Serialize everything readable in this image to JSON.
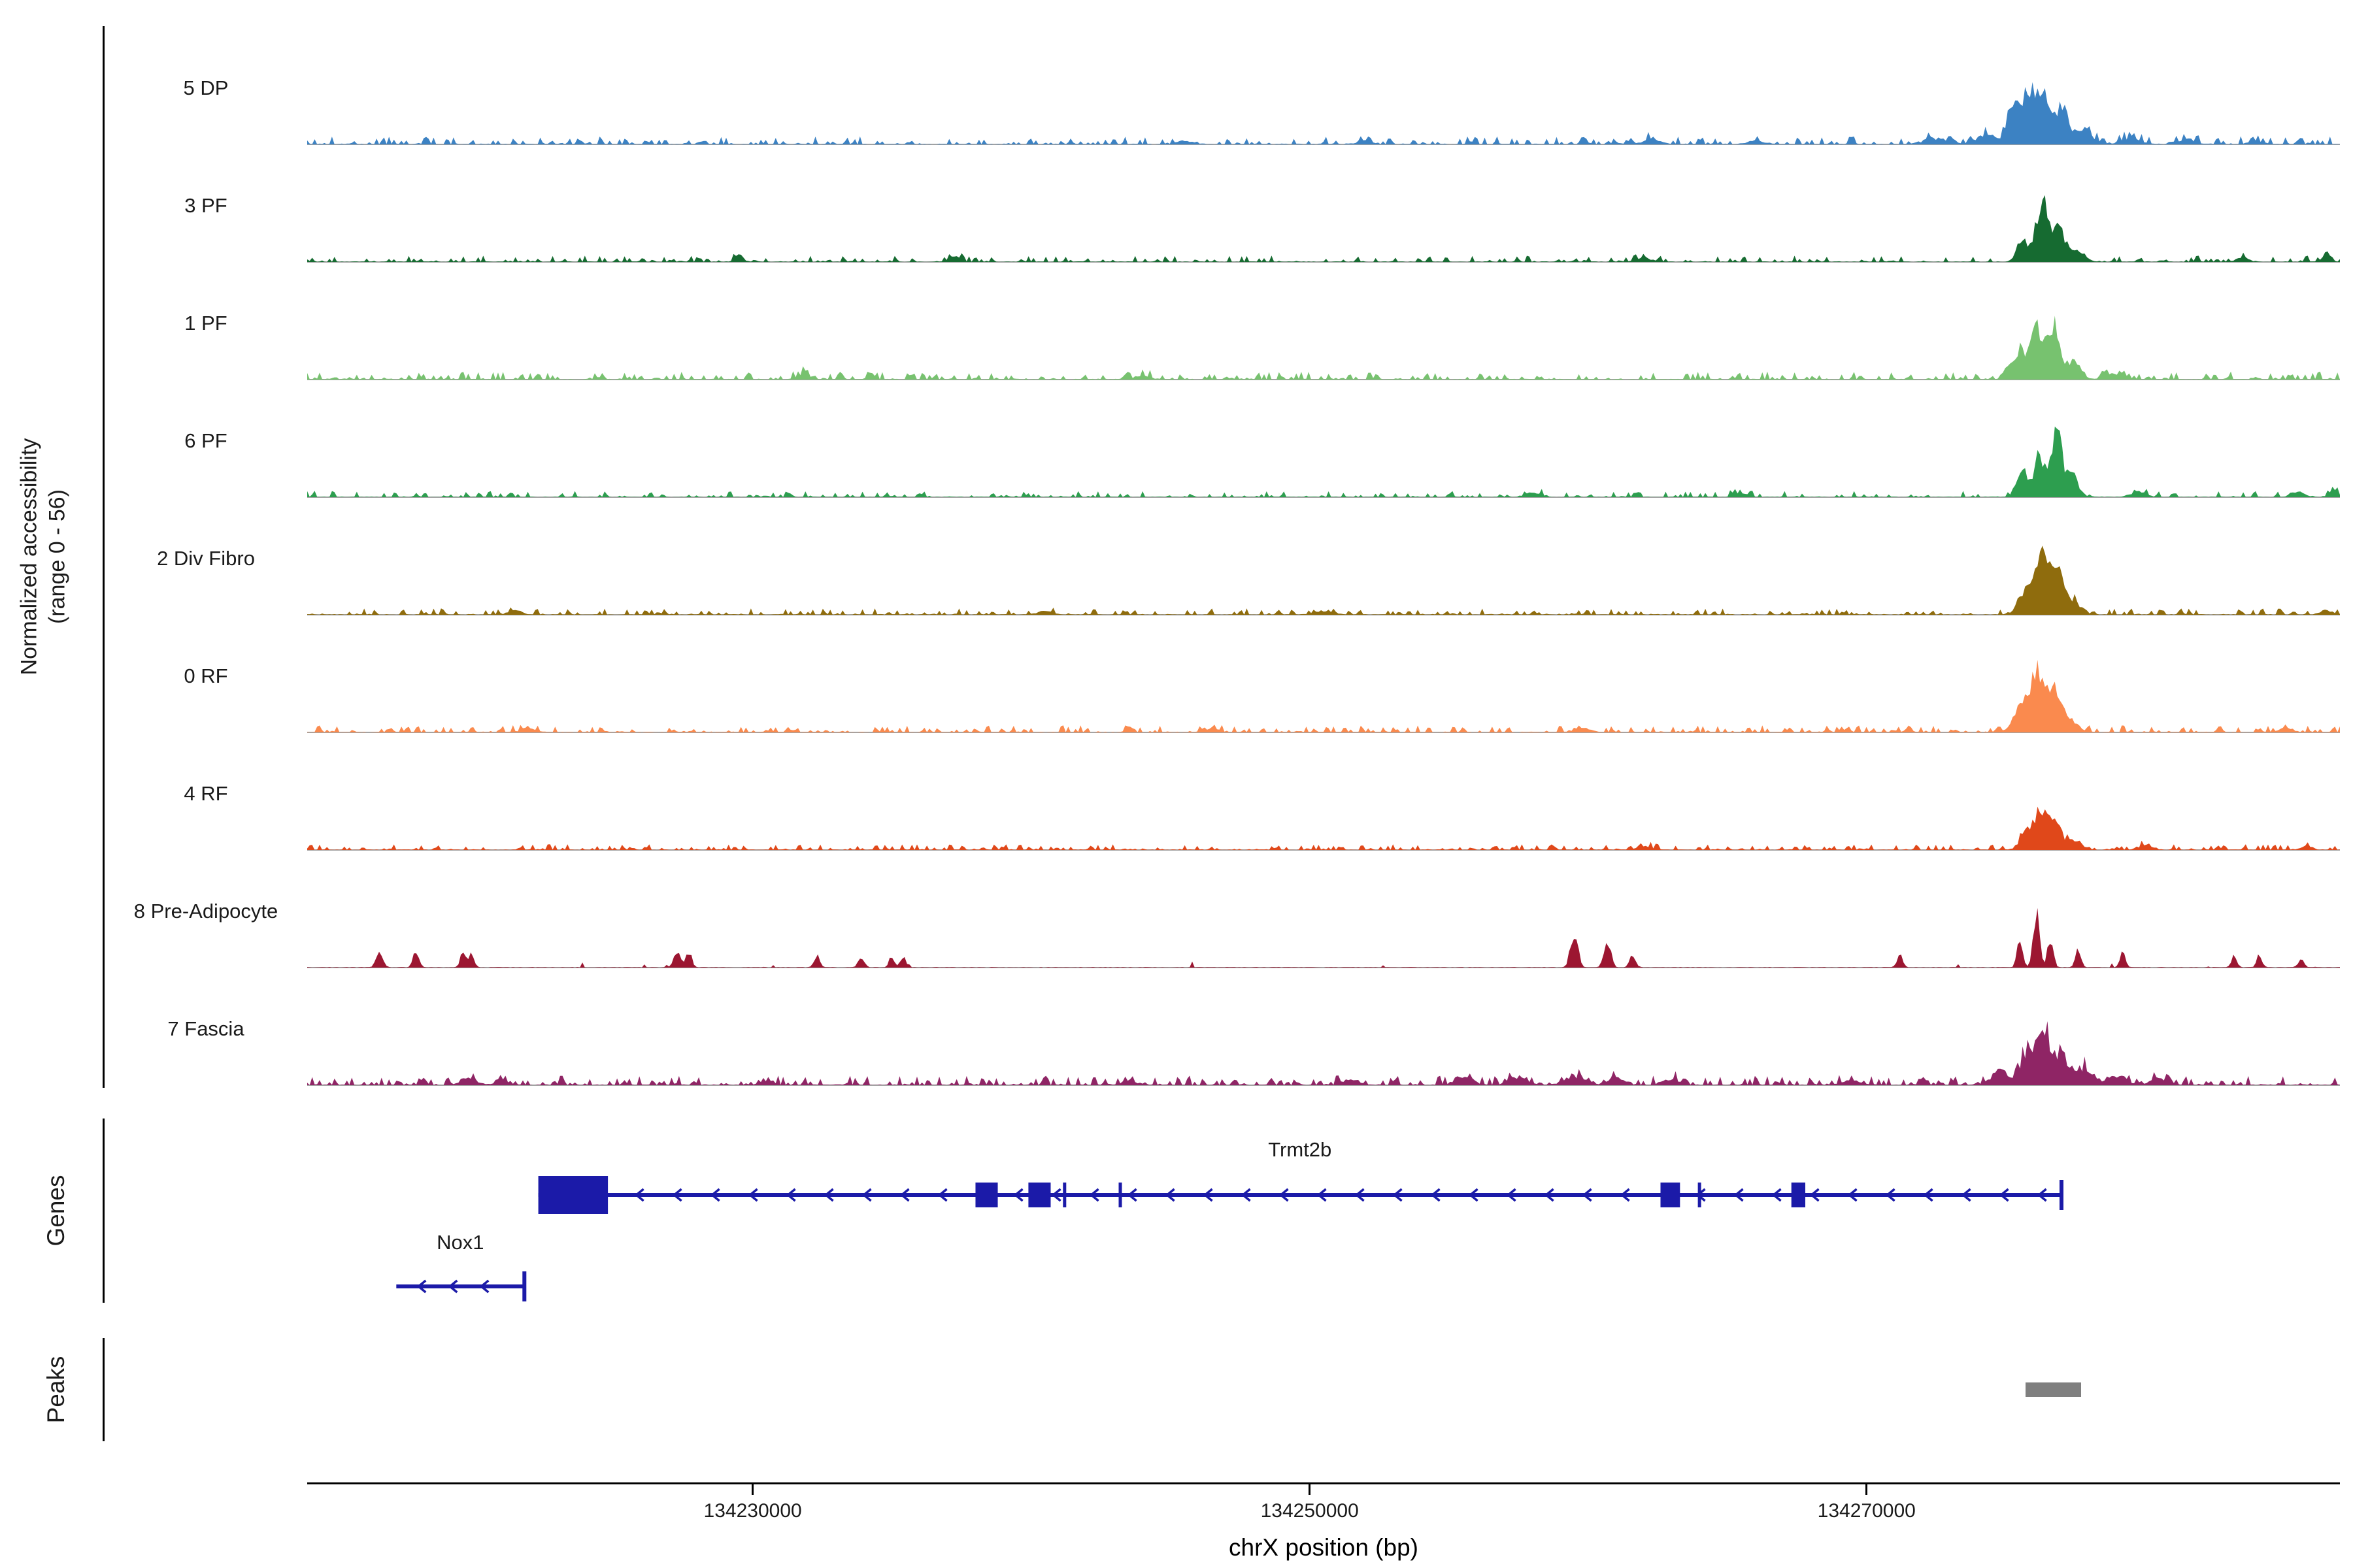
{
  "y_axis": {
    "label_line1": "Normalized accessibility",
    "label_line2": "(range 0 - 56)"
  },
  "sections": {
    "genes_label": "Genes",
    "peaks_label": "Peaks"
  },
  "chart_data": {
    "type": "area",
    "ylim": [
      0,
      56
    ],
    "x_domain_bp": [
      134214000,
      134287000
    ],
    "xaxis": {
      "title": "chrX position (bp)",
      "ticks": [
        {
          "bp": 134230000,
          "label": "134230000"
        },
        {
          "bp": 134250000,
          "label": "134250000"
        },
        {
          "bp": 134270000,
          "label": "134270000"
        }
      ]
    },
    "tracks": [
      {
        "label": "5 DP",
        "color": "#3c82c3",
        "noise": {
          "density": 0.55,
          "amp": 2.5
        },
        "peaks": [
          [
            134245500,
            3,
            300
          ],
          [
            134252000,
            2.5,
            250
          ],
          [
            134262300,
            4,
            300
          ],
          [
            134266000,
            3,
            250
          ],
          [
            134272500,
            5,
            400
          ],
          [
            134274300,
            8,
            300
          ],
          [
            134275300,
            30,
            250
          ],
          [
            134275900,
            45,
            220
          ],
          [
            134276400,
            38,
            200
          ],
          [
            134277000,
            30,
            250
          ],
          [
            134277800,
            12,
            300
          ],
          [
            134279500,
            6,
            300
          ],
          [
            134281500,
            4,
            250
          ],
          [
            134284000,
            3,
            250
          ]
        ]
      },
      {
        "label": "3 PF",
        "color": "#166b31",
        "noise": {
          "density": 0.5,
          "amp": 2
        },
        "peaks": [
          [
            134229500,
            5,
            150
          ],
          [
            134237300,
            4,
            200
          ],
          [
            134262000,
            3,
            250
          ],
          [
            134275600,
            18,
            200
          ],
          [
            134276300,
            52,
            220
          ],
          [
            134276900,
            30,
            200
          ],
          [
            134277600,
            10,
            250
          ],
          [
            134283500,
            4,
            200
          ],
          [
            134286500,
            5,
            150
          ]
        ]
      },
      {
        "label": "1 PF",
        "color": "#77c26f",
        "noise": {
          "density": 0.6,
          "amp": 2.5
        },
        "peaks": [
          [
            134231800,
            5,
            200
          ],
          [
            134244000,
            3,
            250
          ],
          [
            134275500,
            25,
            250
          ],
          [
            134276100,
            40,
            200
          ],
          [
            134276700,
            45,
            220
          ],
          [
            134277400,
            15,
            250
          ],
          [
            134279000,
            5,
            300
          ]
        ]
      },
      {
        "label": "6 PF",
        "color": "#2d9e4f",
        "noise": {
          "density": 0.5,
          "amp": 2
        },
        "peaks": [
          [
            134258000,
            4,
            250
          ],
          [
            134265500,
            4,
            200
          ],
          [
            134275600,
            22,
            200
          ],
          [
            134276200,
            35,
            180
          ],
          [
            134276800,
            56,
            200
          ],
          [
            134277400,
            20,
            200
          ],
          [
            134279800,
            5,
            250
          ],
          [
            134285500,
            4,
            250
          ],
          [
            134286800,
            6,
            150
          ]
        ]
      },
      {
        "label": "2 Div Fibro",
        "color": "#8f6c0d",
        "noise": {
          "density": 0.5,
          "amp": 2
        },
        "peaks": [
          [
            134221500,
            4,
            200
          ],
          [
            134240500,
            3,
            250
          ],
          [
            134250500,
            3,
            300
          ],
          [
            134275700,
            20,
            250
          ],
          [
            134276300,
            52,
            260
          ],
          [
            134276900,
            35,
            220
          ],
          [
            134277500,
            10,
            250
          ],
          [
            134286500,
            4,
            200
          ]
        ]
      },
      {
        "label": "0 RF",
        "color": "#fa8a4e",
        "noise": {
          "density": 0.6,
          "amp": 2.2
        },
        "peaks": [
          [
            134222000,
            3,
            250
          ],
          [
            134246500,
            3,
            250
          ],
          [
            134259800,
            4,
            250
          ],
          [
            134275500,
            20,
            250
          ],
          [
            134276100,
            48,
            240
          ],
          [
            134276700,
            35,
            220
          ],
          [
            134277300,
            12,
            250
          ],
          [
            134285000,
            3,
            250
          ]
        ]
      },
      {
        "label": "4 RF",
        "color": "#e0481a",
        "noise": {
          "density": 0.55,
          "amp": 1.8
        },
        "peaks": [
          [
            134262000,
            3,
            250
          ],
          [
            134275800,
            15,
            250
          ],
          [
            134276300,
            32,
            220
          ],
          [
            134276800,
            22,
            200
          ],
          [
            134277400,
            8,
            250
          ],
          [
            134280000,
            4,
            250
          ],
          [
            134285800,
            3,
            200
          ]
        ]
      },
      {
        "label": "8 Pre-Adipocyte",
        "color": "#9c1631",
        "noise": {
          "density": 0.02,
          "amp": 2
        },
        "peaks": [
          [
            134216600,
            12,
            120
          ],
          [
            134217900,
            14,
            100
          ],
          [
            134219600,
            11,
            100
          ],
          [
            134219900,
            12,
            90
          ],
          [
            134227300,
            16,
            110
          ],
          [
            134227700,
            14,
            100
          ],
          [
            134232300,
            10,
            100
          ],
          [
            134233900,
            10,
            100
          ],
          [
            134235000,
            10,
            90
          ],
          [
            134235400,
            10,
            90
          ],
          [
            134259500,
            30,
            130
          ],
          [
            134260700,
            24,
            120
          ],
          [
            134261600,
            12,
            100
          ],
          [
            134271200,
            10,
            100
          ],
          [
            134275500,
            22,
            100
          ],
          [
            134276100,
            50,
            110
          ],
          [
            134276600,
            25,
            100
          ],
          [
            134277600,
            14,
            100
          ],
          [
            134279200,
            12,
            100
          ],
          [
            134283200,
            10,
            90
          ],
          [
            134284100,
            12,
            90
          ],
          [
            134285600,
            9,
            90
          ]
        ]
      },
      {
        "label": "7 Fascia",
        "color": "#8f2565",
        "noise": {
          "density": 0.7,
          "amp": 3
        },
        "peaks": [
          [
            134219800,
            6,
            250
          ],
          [
            134221000,
            5,
            200
          ],
          [
            134230500,
            3,
            250
          ],
          [
            134243500,
            4,
            250
          ],
          [
            134251500,
            4,
            300
          ],
          [
            134255500,
            6,
            300
          ],
          [
            134257500,
            7,
            300
          ],
          [
            134259500,
            8,
            300
          ],
          [
            134261000,
            6,
            300
          ],
          [
            134263000,
            5,
            300
          ],
          [
            134269500,
            4,
            300
          ],
          [
            134274800,
            12,
            300
          ],
          [
            134275800,
            30,
            250
          ],
          [
            134276400,
            40,
            230
          ],
          [
            134277000,
            25,
            250
          ],
          [
            134277800,
            14,
            300
          ],
          [
            134279000,
            8,
            300
          ],
          [
            134280500,
            5,
            300
          ]
        ]
      }
    ],
    "gene_color": "#1b1aa8",
    "genes": [
      {
        "name": "Trmt2b",
        "start": 134222300,
        "end": 134277000,
        "strand": "-",
        "thick_exon": [
          134222300,
          134224800
        ],
        "exons": [
          [
            134238000,
            134238800
          ],
          [
            134239900,
            134240700
          ],
          [
            134262600,
            134263300
          ],
          [
            134267300,
            134267800
          ]
        ],
        "ticks": [
          134241200,
          134243200,
          134264000
        ],
        "tss": 134277000
      },
      {
        "name": "Nox1",
        "start": 134217200,
        "end": 134221800,
        "strand": "-",
        "thick_exon": null,
        "exons": [],
        "ticks": [],
        "tss": 134221800
      }
    ],
    "peaks_track": [
      {
        "start": 134275700,
        "end": 134277700,
        "color": "#7f7f7f"
      }
    ]
  }
}
